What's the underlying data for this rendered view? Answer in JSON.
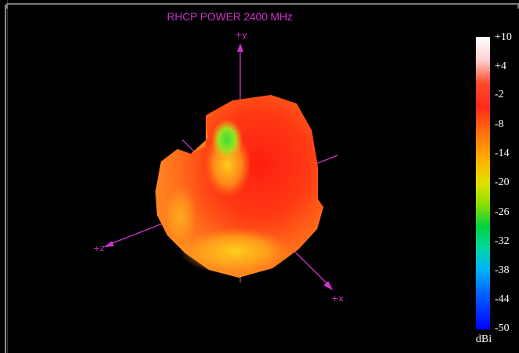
{
  "plot": {
    "title": "RHCP POWER 2400  MHz"
  },
  "axes": {
    "y_label": "+y",
    "z_label": "+z",
    "x_label": "+x"
  },
  "colorbar": {
    "unit": "dBi",
    "ticks": [
      "+10",
      "+4",
      "-2",
      "-8",
      "-14",
      "-20",
      "-26",
      "-32",
      "-38",
      "-44",
      "-50"
    ],
    "max": 10,
    "min": -50
  },
  "colors": {
    "axis": "#cc33cc",
    "background": "#000000"
  }
}
